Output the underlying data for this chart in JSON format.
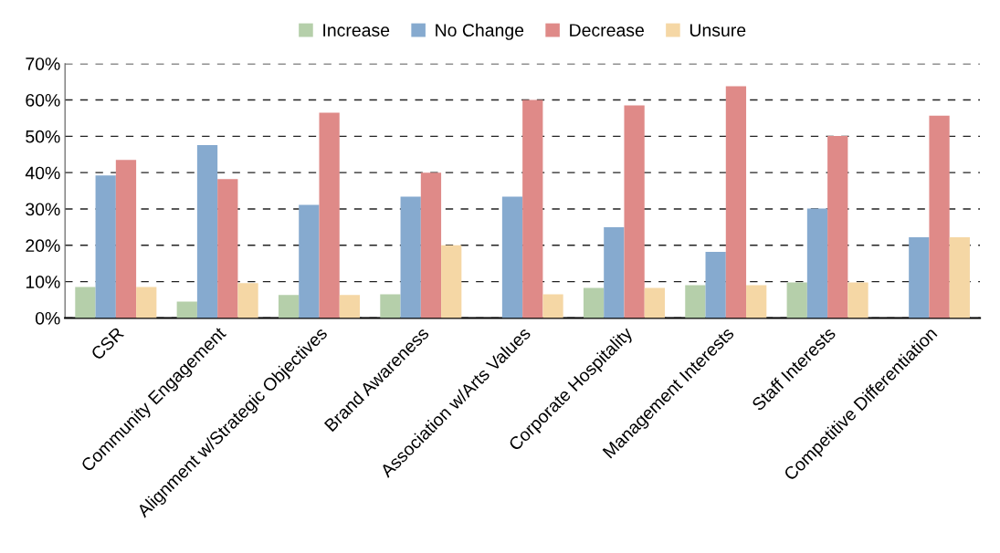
{
  "chart_data": {
    "type": "bar",
    "categories": [
      "CSR",
      "Community Engagement",
      "Alignment w/Strategic Objectives",
      "Brand Awareness",
      "Association w/Arts Values",
      "Corporate Hospitality",
      "Management Interests",
      "Staff Interests",
      "Competitive Differentiation"
    ],
    "series": [
      {
        "name": "Increase",
        "color": "#b5cfaa",
        "values": [
          8.5,
          4.5,
          6.3,
          6.5,
          0,
          8.3,
          9.0,
          9.8,
          0
        ]
      },
      {
        "name": "No Change",
        "color": "#86aacf",
        "values": [
          39.2,
          47.6,
          31.1,
          33.4,
          33.4,
          25.0,
          18.2,
          30.1,
          22.2
        ]
      },
      {
        "name": "Decrease",
        "color": "#df8a88",
        "values": [
          43.5,
          38.2,
          56.5,
          40.0,
          60.0,
          58.5,
          63.8,
          50.1,
          55.7
        ]
      },
      {
        "name": "Unsure",
        "color": "#f5d7a5",
        "values": [
          8.5,
          9.6,
          6.3,
          20.0,
          6.5,
          8.3,
          9.0,
          9.8,
          22.2
        ]
      }
    ],
    "ylim": [
      0,
      70
    ],
    "yticks": [
      {
        "value": 0,
        "label": "0%"
      },
      {
        "value": 10,
        "label": "10%"
      },
      {
        "value": 20,
        "label": "20%"
      },
      {
        "value": 30,
        "label": "30%"
      },
      {
        "value": 40,
        "label": "40%"
      },
      {
        "value": 50,
        "label": "50%"
      },
      {
        "value": 60,
        "label": "60%"
      },
      {
        "value": 70,
        "label": "70%"
      }
    ],
    "grid": "y",
    "legend": "top"
  }
}
